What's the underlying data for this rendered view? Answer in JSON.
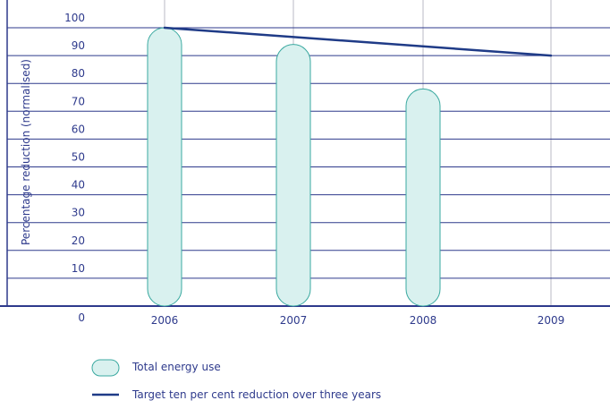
{
  "chart_data": {
    "type": "bar",
    "categories": [
      "2006",
      "2007",
      "2008",
      "2009"
    ],
    "series": [
      {
        "name": "Total energy use",
        "kind": "bar",
        "values": [
          100,
          94,
          78,
          null
        ]
      },
      {
        "name": "Target ten per cent reduction over three years",
        "kind": "line",
        "values": [
          100,
          96.7,
          93.3,
          90
        ]
      }
    ],
    "ylabel": "Percentage reduction (normalised)",
    "ylim": [
      0,
      100
    ],
    "yticks": [
      0,
      10,
      20,
      30,
      40,
      50,
      60,
      70,
      80,
      90,
      100
    ],
    "grid": true,
    "legend_position": "bottom"
  },
  "colors": {
    "bar_fill": "#d9f1ef",
    "bar_stroke": "#3aa9a0",
    "line": "#1f3b87",
    "grid": "#2e3a8c",
    "vgrid": "#b9b9c4",
    "text": "#2e3a8c"
  },
  "legend": {
    "bar_label": "Total energy use",
    "line_label": "Target ten per cent reduction over three years"
  }
}
